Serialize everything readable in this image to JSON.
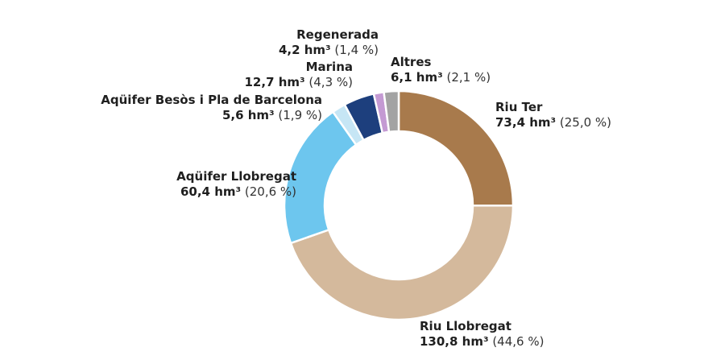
{
  "chart_data": {
    "type": "pie",
    "unit": "hm³",
    "series": [
      {
        "name": "Riu Ter",
        "value": 73.4,
        "value_label": "73,4 hm³",
        "pct_label": "(25,0 %)",
        "color": "#a87a4c"
      },
      {
        "name": "Riu Llobregat",
        "value": 130.8,
        "value_label": "130,8 hm³",
        "pct_label": "(44,6 %)",
        "color": "#d4b99c"
      },
      {
        "name": "Aqüifer Llobregat",
        "value": 60.4,
        "value_label": "60,4 hm³",
        "pct_label": "(20,6 %)",
        "color": "#6dc6ee"
      },
      {
        "name": "Aqüifer Besòs i Pla de Barcelona",
        "value": 5.6,
        "value_label": "5,6 hm³",
        "pct_label": "(1,9 %)",
        "color": "#c6e6f5"
      },
      {
        "name": "Marina",
        "value": 12.7,
        "value_label": "12,7 hm³",
        "pct_label": "(4,3 %)",
        "color": "#1d3f7d"
      },
      {
        "name": "Regenerada",
        "value": 4.2,
        "value_label": "4,2 hm³",
        "pct_label": "(1,4 %)",
        "color": "#c49ad3"
      },
      {
        "name": "Altres",
        "value": 6.1,
        "value_label": "6,1 hm³",
        "pct_label": "(2,1 %)",
        "color": "#a3a3a3"
      }
    ]
  }
}
